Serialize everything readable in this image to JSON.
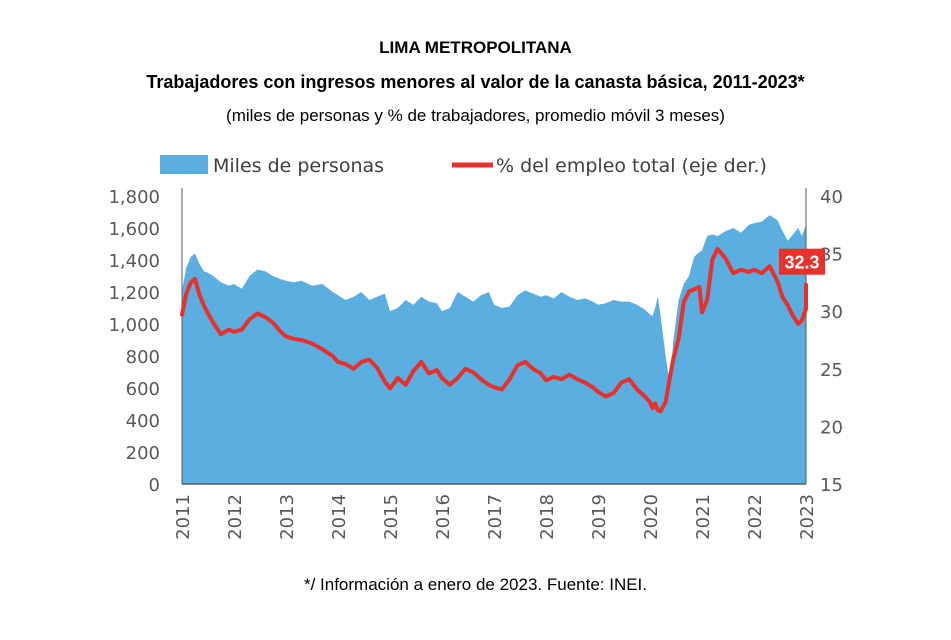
{
  "header": {
    "title": "LIMA METROPOLITANA",
    "subtitle": "Trabajadores con ingresos menores al valor de la canasta básica, 2011-2023*",
    "units": "(miles de personas y % de trabajadores, promedio móvil 3 meses)"
  },
  "footer": {
    "note": "*/ Información a enero de 2023. Fuente: INEI."
  },
  "colors": {
    "area": "#5aaee0",
    "line": "#e8302d",
    "badge": "#e8302d",
    "axis": "#595959"
  },
  "chart_data": {
    "type": "area",
    "x_categories": [
      "2011",
      "2012",
      "2013",
      "2014",
      "2015",
      "2016",
      "2017",
      "2018",
      "2019",
      "2020",
      "2021",
      "2022",
      "2023"
    ],
    "ylim_left": [
      0,
      1800
    ],
    "ylim_right": [
      15,
      40
    ],
    "yticks_left": [
      "0",
      "200",
      "400",
      "600",
      "800",
      "1,000",
      "1,200",
      "1,400",
      "1,600",
      "1,800"
    ],
    "yticks_right": [
      "15",
      "20",
      "25",
      "30",
      "35",
      "40"
    ],
    "last_value_label": "32.3",
    "legend_position": "top",
    "series": [
      {
        "name": "Miles de personas",
        "axis": "left",
        "kind": "area",
        "x": [
          2011.0,
          2011.08,
          2011.17,
          2011.25,
          2011.33,
          2011.42,
          2011.5,
          2011.6,
          2011.75,
          2011.9,
          2012.0,
          2012.15,
          2012.3,
          2012.45,
          2012.6,
          2012.75,
          2012.9,
          2013.0,
          2013.15,
          2013.3,
          2013.5,
          2013.7,
          2013.9,
          2014.0,
          2014.15,
          2014.3,
          2014.45,
          2014.6,
          2014.75,
          2014.9,
          2015.0,
          2015.15,
          2015.3,
          2015.45,
          2015.6,
          2015.75,
          2015.9,
          2016.0,
          2016.15,
          2016.3,
          2016.45,
          2016.6,
          2016.75,
          2016.9,
          2017.0,
          2017.15,
          2017.3,
          2017.45,
          2017.6,
          2017.75,
          2017.9,
          2018.0,
          2018.15,
          2018.3,
          2018.45,
          2018.6,
          2018.75,
          2018.9,
          2019.0,
          2019.15,
          2019.3,
          2019.45,
          2019.6,
          2019.75,
          2019.9,
          2020.0,
          2020.05,
          2020.1,
          2020.15,
          2020.2,
          2020.3,
          2020.38,
          2020.45,
          2020.55,
          2020.65,
          2020.75,
          2020.85,
          2020.95,
          2021.0,
          2021.1,
          2021.2,
          2021.3,
          2021.45,
          2021.6,
          2021.75,
          2021.9,
          2022.0,
          2022.15,
          2022.3,
          2022.45,
          2022.55,
          2022.65,
          2022.75,
          2022.85,
          2022.92,
          2023.0,
          2023.08
        ],
        "values": [
          1210,
          1350,
          1420,
          1440,
          1380,
          1330,
          1320,
          1300,
          1260,
          1240,
          1250,
          1220,
          1300,
          1340,
          1330,
          1300,
          1280,
          1270,
          1260,
          1270,
          1240,
          1250,
          1200,
          1180,
          1150,
          1170,
          1200,
          1150,
          1170,
          1190,
          1080,
          1100,
          1150,
          1120,
          1170,
          1140,
          1130,
          1080,
          1100,
          1200,
          1170,
          1140,
          1180,
          1200,
          1120,
          1100,
          1110,
          1180,
          1210,
          1190,
          1170,
          1180,
          1160,
          1200,
          1170,
          1150,
          1160,
          1140,
          1120,
          1130,
          1150,
          1140,
          1140,
          1120,
          1090,
          1060,
          1050,
          1100,
          1170,
          1060,
          800,
          620,
          900,
          1150,
          1250,
          1300,
          1420,
          1450,
          1460,
          1550,
          1560,
          1550,
          1580,
          1600,
          1570,
          1620,
          1630,
          1640,
          1680,
          1650,
          1580,
          1520,
          1560,
          1600,
          1550,
          1620,
          1630
        ]
      },
      {
        "name": "% del empleo total (eje der.)",
        "axis": "right",
        "kind": "line",
        "x": [
          2011.0,
          2011.08,
          2011.17,
          2011.25,
          2011.33,
          2011.42,
          2011.5,
          2011.6,
          2011.75,
          2011.9,
          2012.0,
          2012.15,
          2012.3,
          2012.45,
          2012.6,
          2012.75,
          2012.9,
          2013.0,
          2013.15,
          2013.3,
          2013.5,
          2013.7,
          2013.9,
          2014.0,
          2014.15,
          2014.3,
          2014.45,
          2014.6,
          2014.75,
          2014.9,
          2015.0,
          2015.15,
          2015.3,
          2015.45,
          2015.6,
          2015.75,
          2015.9,
          2016.0,
          2016.15,
          2016.3,
          2016.45,
          2016.6,
          2016.75,
          2016.9,
          2017.0,
          2017.15,
          2017.3,
          2017.45,
          2017.6,
          2017.75,
          2017.9,
          2018.0,
          2018.15,
          2018.3,
          2018.45,
          2018.6,
          2018.75,
          2018.9,
          2019.0,
          2019.15,
          2019.3,
          2019.45,
          2019.6,
          2019.75,
          2019.9,
          2020.0,
          2020.05,
          2020.1,
          2020.15,
          2020.2,
          2020.3,
          2020.38,
          2020.45,
          2020.55,
          2020.65,
          2020.75,
          2020.85,
          2020.95,
          2021.0,
          2021.1,
          2021.2,
          2021.3,
          2021.45,
          2021.6,
          2021.75,
          2021.9,
          2022.0,
          2022.15,
          2022.3,
          2022.45,
          2022.55,
          2022.65,
          2022.75,
          2022.85,
          2022.92,
          2023.0,
          2023.08
        ],
        "values": [
          29.7,
          31.5,
          32.5,
          32.8,
          31.5,
          30.5,
          29.8,
          29.0,
          28.0,
          28.4,
          28.2,
          28.4,
          29.3,
          29.8,
          29.5,
          29.0,
          28.2,
          27.8,
          27.6,
          27.5,
          27.2,
          26.7,
          26.1,
          25.6,
          25.4,
          25.0,
          25.6,
          25.8,
          25.1,
          23.9,
          23.3,
          24.2,
          23.6,
          24.8,
          25.6,
          24.6,
          24.9,
          24.2,
          23.6,
          24.2,
          25.0,
          24.7,
          24.1,
          23.6,
          23.4,
          23.2,
          24.1,
          25.3,
          25.6,
          25.0,
          24.6,
          24.0,
          24.3,
          24.1,
          24.5,
          24.1,
          23.8,
          23.4,
          23.0,
          22.6,
          22.9,
          23.8,
          24.1,
          23.2,
          22.6,
          22.1,
          21.6,
          22.0,
          21.4,
          21.3,
          22.1,
          24.2,
          25.9,
          27.6,
          30.8,
          31.7,
          31.9,
          32.1,
          29.9,
          31.0,
          34.5,
          35.4,
          34.6,
          33.3,
          33.6,
          33.4,
          33.6,
          33.3,
          33.9,
          32.6,
          31.2,
          30.5,
          29.6,
          28.9,
          29.2,
          30.2,
          32.3
        ]
      }
    ]
  }
}
